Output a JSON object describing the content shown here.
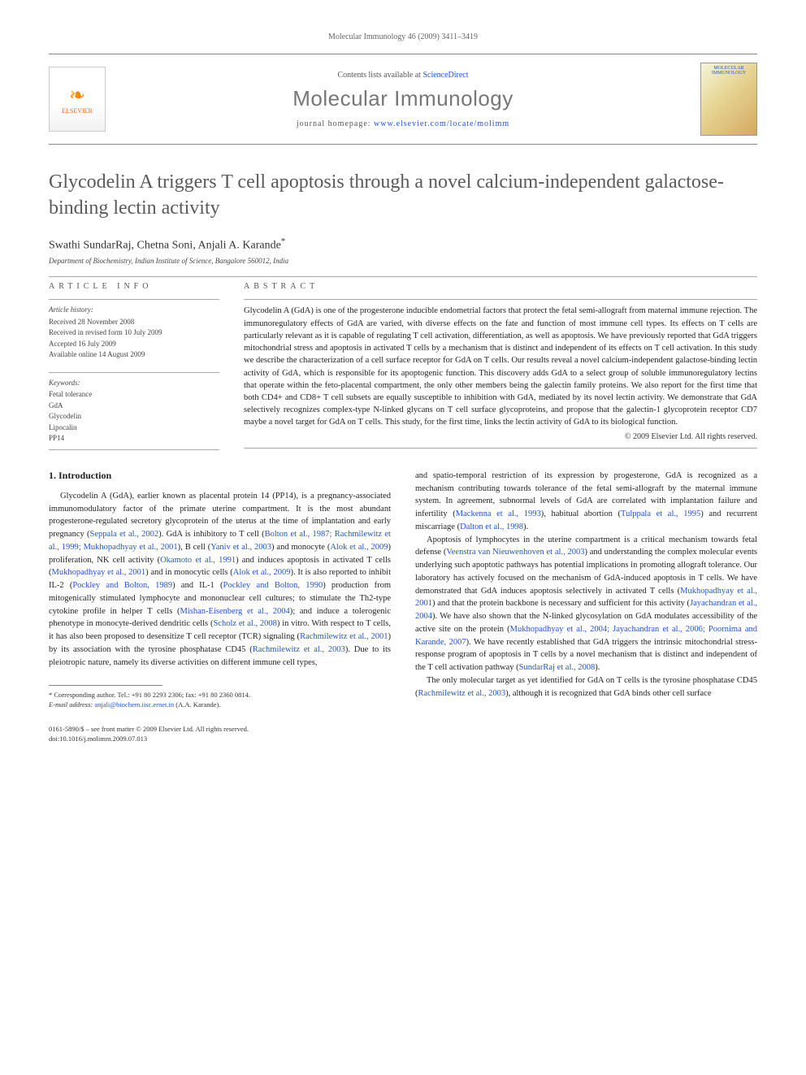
{
  "header": {
    "citation": "Molecular Immunology 46 (2009) 3411–3419",
    "contents_prefix": "Contents lists available at ",
    "contents_link": "ScienceDirect",
    "journal_name": "Molecular Immunology",
    "homepage_prefix": "journal homepage: ",
    "homepage_url": "www.elsevier.com/locate/molimm",
    "publisher": "ELSEVIER",
    "cover_label": "MOLECULAR IMMUNOLOGY"
  },
  "article": {
    "title": "Glycodelin A triggers T cell apoptosis through a novel calcium-independent galactose-binding lectin activity",
    "authors": "Swathi SundarRaj, Chetna Soni, Anjali A. Karande",
    "corr_mark": "*",
    "affiliation": "Department of Biochemistry, Indian Institute of Science, Bangalore 560012, India"
  },
  "info": {
    "label": "article info",
    "history_label": "Article history:",
    "received": "Received 28 November 2008",
    "revised": "Received in revised form 10 July 2009",
    "accepted": "Accepted 16 July 2009",
    "online": "Available online 14 August 2009",
    "keywords_label": "Keywords:",
    "kw1": "Fetal tolerance",
    "kw2": "GdA",
    "kw3": "Glycodelin",
    "kw4": "Lipocalin",
    "kw5": "PP14"
  },
  "abstract": {
    "label": "abstract",
    "text": "Glycodelin A (GdA) is one of the progesterone inducible endometrial factors that protect the fetal semi-allograft from maternal immune rejection. The immunoregulatory effects of GdA are varied, with diverse effects on the fate and function of most immune cell types. Its effects on T cells are particularly relevant as it is capable of regulating T cell activation, differentiation, as well as apoptosis. We have previously reported that GdA triggers mitochondrial stress and apoptosis in activated T cells by a mechanism that is distinct and independent of its effects on T cell activation. In this study we describe the characterization of a cell surface receptor for GdA on T cells. Our results reveal a novel calcium-independent galactose-binding lectin activity of GdA, which is responsible for its apoptogenic function. This discovery adds GdA to a select group of soluble immunoregulatory lectins that operate within the feto-placental compartment, the only other members being the galectin family proteins. We also report for the first time that both CD4+ and CD8+ T cell subsets are equally susceptible to inhibition with GdA, mediated by its novel lectin activity. We demonstrate that GdA selectively recognizes complex-type N-linked glycans on T cell surface glycoproteins, and propose that the galectin-1 glycoprotein receptor CD7 maybe a novel target for GdA on T cells. This study, for the first time, links the lectin activity of GdA to its biological function.",
    "copyright": "© 2009 Elsevier Ltd. All rights reserved."
  },
  "body": {
    "intro_heading": "1.  Introduction",
    "col1_p1a": "Glycodelin A (GdA), earlier known as placental protein 14 (PP14), is a pregnancy-associated immunomodulatory factor of the primate uterine compartment. It is the most abundant progesterone-regulated secretory glycoprotein of the uterus at the time of implantation and early pregnancy (",
    "r_seppala": "Seppala et al., 2002",
    "col1_p1b": "). GdA is inhibitory to T cell (",
    "r_bolton": "Bolton et al., 1987; Rachmilewitz et al., 1999; Mukhopadhyay et al., 2001",
    "col1_p1c": "), B cell (",
    "r_yaniv": "Yaniv et al., 2003",
    "col1_p1d": ") and monocyte (",
    "r_alok": "Alok et al., 2009",
    "col1_p1e": ") proliferation, NK cell activity (",
    "r_okamoto": "Okamoto et al., 1991",
    "col1_p1f": ") and induces apoptosis in activated T cells (",
    "r_mukho": "Mukhopadhyay et al., 2001",
    "col1_p1g": ") and in monocytic cells (",
    "r_alok2": "Alok et al., 2009",
    "col1_p1h": "). It is also reported to inhibit IL-2 (",
    "r_pockley89": "Pockley and Bolton, 1989",
    "col1_p1i": ") and IL-1 (",
    "r_pockley90": "Pockley and Bolton, 1990",
    "col1_p1j": ") production from mitogenically stimulated lymphocyte and mononuclear cell cultures; to stimulate the Th2-type cytokine profile in helper T cells (",
    "r_mishan": "Mishan-Eisenberg et al., 2004",
    "col1_p1k": "); and induce a tolerogenic phenotype in monocyte-derived dendritic cells (",
    "r_scholz": "Scholz et al., 2008",
    "col1_p1l": ") in vitro. With respect to T cells, it has also been proposed to desensitize T cell receptor (TCR) signaling (",
    "r_rach01": "Rachmilewitz et al., 2001",
    "col1_p1m": ") by its association with the tyrosine phosphatase CD45 (",
    "r_rach03": "Rachmilewitz et al., 2003",
    "col1_p1n": "). Due to its pleiotropic nature, namely its diverse activities on different immune cell types,",
    "col2_p1a": "and spatio-temporal restriction of its expression by progesterone, GdA is recognized as a mechanism contributing towards tolerance of the fetal semi-allograft by the maternal immune system. In agreement, subnormal levels of GdA are correlated with implantation failure and infertility (",
    "r_mackenna": "Mackenna et al., 1993",
    "col2_p1b": "), habitual abortion (",
    "r_tulppala": "Tulppala et al., 1995",
    "col2_p1c": ") and recurrent miscarriage (",
    "r_dalton": "Dalton et al., 1998",
    "col2_p1d": ").",
    "col2_p2a": "Apoptosis of lymphocytes in the uterine compartment is a critical mechanism towards fetal defense (",
    "r_veenstra": "Veenstra van Nieuwenhoven et al., 2003",
    "col2_p2b": ") and understanding the complex molecular events underlying such apoptotic pathways has potential implications in promoting allograft tolerance. Our laboratory has actively focused on the mechanism of GdA-induced apoptosis in T cells. We have demonstrated that GdA induces apoptosis selectively in activated T cells (",
    "r_mukho01": "Mukhopadhyay et al., 2001",
    "col2_p2c": ") and that the protein backbone is necessary and sufficient for this activity (",
    "r_jaya04": "Jayachandran et al., 2004",
    "col2_p2d": "). We have also shown that the N-linked glycosylation on GdA modulates accessibility of the active site on the protein (",
    "r_mukho04": "Mukhopadhyay et al., 2004; Jayachandran et al., 2006; Poornima and Karande, 2007",
    "col2_p2e": "). We have recently established that GdA triggers the intrinsic mitochondrial stress-response program of apoptosis in T cells by a novel mechanism that is distinct and independent of the T cell activation pathway (",
    "r_sundar": "SundarRaj et al., 2008",
    "col2_p2f": ").",
    "col2_p3a": "The only molecular target as yet identified for GdA on T cells is the tyrosine phosphatase CD45 (",
    "r_rach03b": "Rachmilewitz et al., 2003",
    "col2_p3b": "), although it is recognized that GdA binds other cell surface"
  },
  "footnote": {
    "corr": "* Corresponding author. Tel.: +91 80 2293 2306; fax: +91 80 2360 0814.",
    "email_label": "E-mail address: ",
    "email": "anjali@biochem.iisc.ernet.in",
    "email_suffix": " (A.A. Karande)."
  },
  "footer": {
    "issn": "0161-5890/$ – see front matter © 2009 Elsevier Ltd. All rights reserved.",
    "doi": "doi:10.1016/j.molimm.2009.07.013"
  }
}
